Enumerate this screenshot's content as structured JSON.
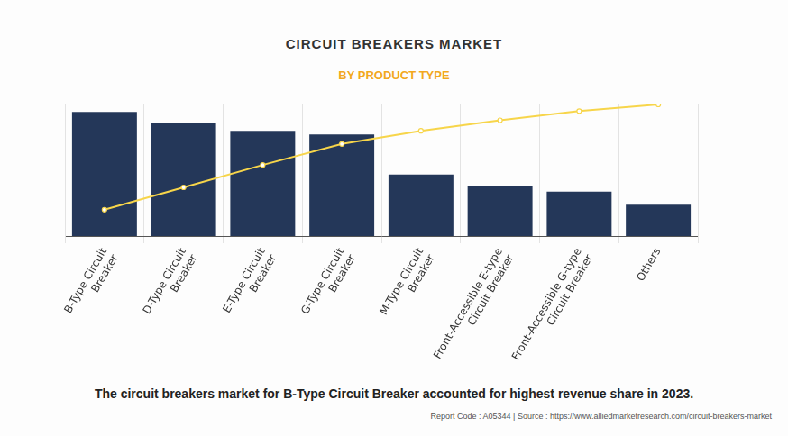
{
  "chart_data": {
    "type": "bar",
    "title": "CIRCUIT BREAKERS MARKET",
    "subtitle": "BY PRODUCT TYPE",
    "categories": [
      "B-Type Circuit Breaker",
      "D-Type Circuit Breaker",
      "E-Type Circuit Breaker",
      "G-Type Circuit Breaker",
      "M-Type Circuit Breaker",
      "Front-Accessible E-type Circuit Breaker",
      "Front-Accessible G-type Circuit Breaker",
      "Others"
    ],
    "series": [
      {
        "type": "bar",
        "color": "#243759",
        "values": [
          19.8,
          18.1,
          16.8,
          16.2,
          9.8,
          7.9,
          7.1,
          5.0
        ]
      },
      {
        "type": "line",
        "axis": "y2",
        "color": "#f7d54a",
        "marker": "circle",
        "values": [
          20,
          37,
          54,
          70,
          80,
          88,
          95,
          100
        ]
      }
    ],
    "ylim": [
      0,
      21
    ],
    "y2lim": [
      0,
      100
    ],
    "tick_labels": "x",
    "grid": "x",
    "annotations": [
      "The circuit breakers market for B-Type Circuit Breaker accounted for highest revenue share in 2023.",
      "Report Code : A05344  |  Source : https://www.alliedmarketresearch.com/circuit-breakers-market"
    ]
  }
}
